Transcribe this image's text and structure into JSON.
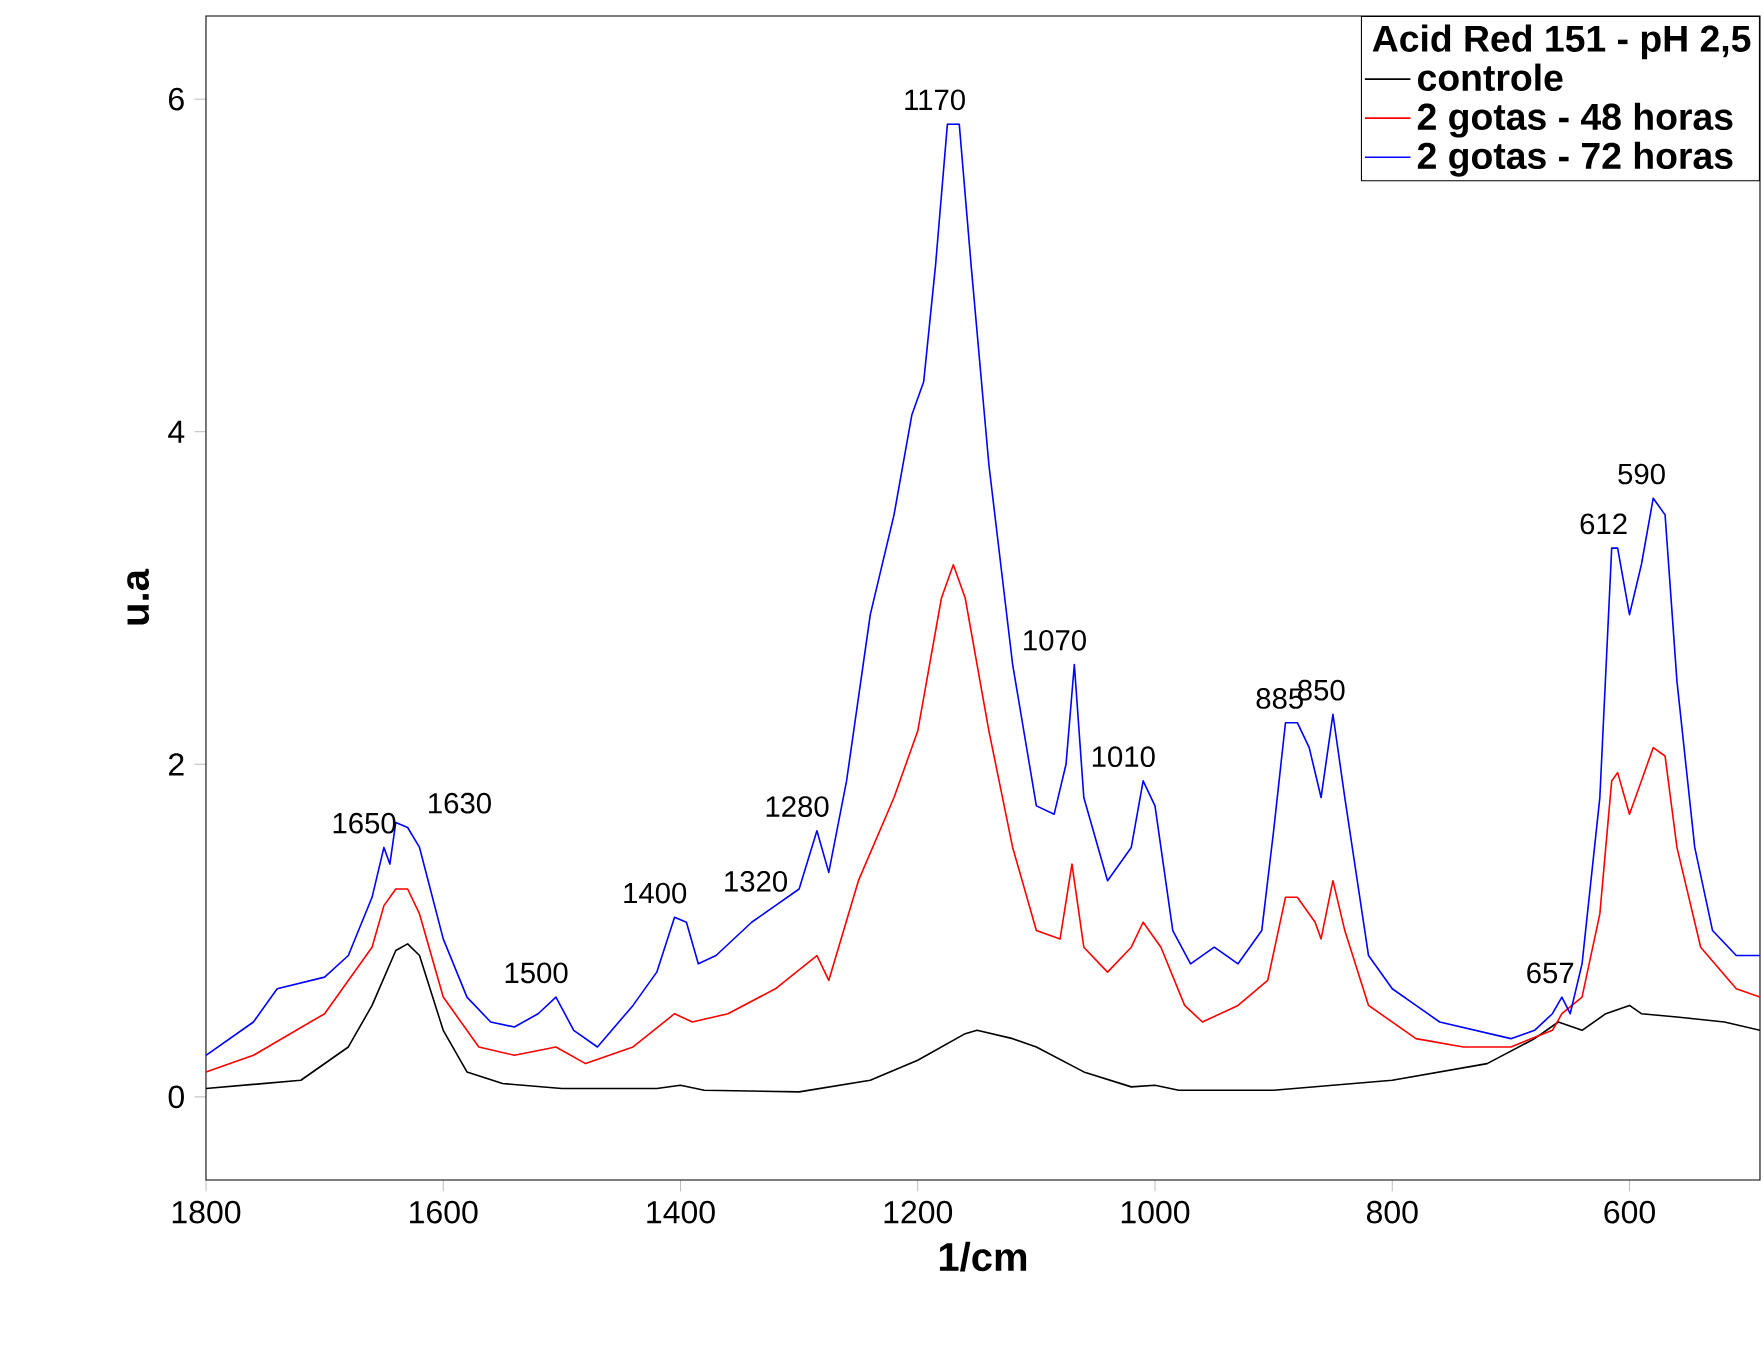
{
  "chart_data": {
    "type": "line",
    "xlabel": "1/cm",
    "ylabel": "u.a",
    "legend_title": "Acid Red 151 - pH 2,5",
    "legend": "top right",
    "grid": false,
    "marker": "none",
    "line_style": "solid",
    "xlim": [
      1800,
      490
    ],
    "xticks": [
      1800,
      1600,
      1400,
      1200,
      1000,
      800,
      600
    ],
    "ylim": [
      -0.5,
      6.5
    ],
    "yticks": [
      0,
      2,
      4,
      6
    ],
    "series": [
      {
        "name": "controle",
        "color": "#000000",
        "x": [
          1800,
          1720,
          1680,
          1660,
          1640,
          1630,
          1620,
          1600,
          1580,
          1550,
          1500,
          1420,
          1400,
          1380,
          1300,
          1240,
          1200,
          1160,
          1150,
          1120,
          1100,
          1060,
          1020,
          1000,
          980,
          900,
          800,
          720,
          680,
          660,
          640,
          620,
          600,
          590,
          560,
          520,
          490
        ],
        "values": [
          0.05,
          0.1,
          0.3,
          0.55,
          0.88,
          0.92,
          0.85,
          0.4,
          0.15,
          0.08,
          0.05,
          0.05,
          0.07,
          0.04,
          0.03,
          0.1,
          0.22,
          0.38,
          0.4,
          0.35,
          0.3,
          0.15,
          0.06,
          0.07,
          0.04,
          0.04,
          0.1,
          0.2,
          0.35,
          0.45,
          0.4,
          0.5,
          0.55,
          0.5,
          0.48,
          0.45,
          0.4
        ]
      },
      {
        "name": "2 gotas - 48 horas",
        "color": "#ff0000",
        "x": [
          1800,
          1760,
          1700,
          1660,
          1650,
          1640,
          1630,
          1620,
          1600,
          1570,
          1540,
          1505,
          1480,
          1440,
          1405,
          1390,
          1360,
          1320,
          1285,
          1275,
          1250,
          1220,
          1200,
          1180,
          1170,
          1160,
          1140,
          1120,
          1100,
          1080,
          1070,
          1060,
          1040,
          1020,
          1010,
          995,
          975,
          960,
          930,
          905,
          890,
          880,
          865,
          860,
          850,
          840,
          820,
          780,
          740,
          700,
          665,
          657,
          640,
          625,
          615,
          610,
          600,
          590,
          580,
          570,
          560,
          540,
          510,
          490
        ],
        "values": [
          0.15,
          0.25,
          0.5,
          0.9,
          1.15,
          1.25,
          1.25,
          1.1,
          0.6,
          0.3,
          0.25,
          0.3,
          0.2,
          0.3,
          0.5,
          0.45,
          0.5,
          0.65,
          0.85,
          0.7,
          1.3,
          1.8,
          2.2,
          3.0,
          3.2,
          3.0,
          2.2,
          1.5,
          1.0,
          0.95,
          1.4,
          0.9,
          0.75,
          0.9,
          1.05,
          0.9,
          0.55,
          0.45,
          0.55,
          0.7,
          1.2,
          1.2,
          1.05,
          0.95,
          1.3,
          1.0,
          0.55,
          0.35,
          0.3,
          0.3,
          0.4,
          0.5,
          0.6,
          1.1,
          1.9,
          1.95,
          1.7,
          1.9,
          2.1,
          2.05,
          1.5,
          0.9,
          0.65,
          0.6
        ]
      },
      {
        "name": "2 gotas - 72 horas",
        "color": "#0000ff",
        "x": [
          1800,
          1760,
          1740,
          1700,
          1680,
          1660,
          1650,
          1645,
          1640,
          1630,
          1620,
          1600,
          1580,
          1560,
          1540,
          1520,
          1505,
          1490,
          1470,
          1440,
          1420,
          1405,
          1395,
          1385,
          1370,
          1340,
          1320,
          1300,
          1285,
          1275,
          1260,
          1240,
          1220,
          1205,
          1195,
          1185,
          1175,
          1165,
          1155,
          1140,
          1120,
          1100,
          1085,
          1075,
          1068,
          1060,
          1040,
          1020,
          1010,
          1000,
          985,
          970,
          950,
          930,
          910,
          900,
          890,
          880,
          870,
          860,
          850,
          840,
          820,
          800,
          780,
          760,
          730,
          700,
          680,
          665,
          657,
          650,
          640,
          625,
          615,
          610,
          600,
          590,
          580,
          570,
          560,
          545,
          530,
          510,
          490
        ],
        "values": [
          0.25,
          0.45,
          0.65,
          0.72,
          0.85,
          1.2,
          1.5,
          1.4,
          1.65,
          1.62,
          1.5,
          0.95,
          0.6,
          0.45,
          0.42,
          0.5,
          0.6,
          0.4,
          0.3,
          0.55,
          0.75,
          1.08,
          1.05,
          0.8,
          0.85,
          1.05,
          1.15,
          1.25,
          1.6,
          1.35,
          1.9,
          2.9,
          3.5,
          4.1,
          4.3,
          5.0,
          5.85,
          5.85,
          5.0,
          3.8,
          2.6,
          1.75,
          1.7,
          2.0,
          2.6,
          1.8,
          1.3,
          1.5,
          1.9,
          1.75,
          1.0,
          0.8,
          0.9,
          0.8,
          1.0,
          1.6,
          2.25,
          2.25,
          2.1,
          1.8,
          2.3,
          1.8,
          0.85,
          0.65,
          0.55,
          0.45,
          0.4,
          0.35,
          0.4,
          0.5,
          0.6,
          0.5,
          0.8,
          1.8,
          3.3,
          3.3,
          2.9,
          3.2,
          3.6,
          3.5,
          2.5,
          1.5,
          1.0,
          0.85,
          0.85
        ]
      }
    ],
    "annotations": [
      {
        "text": "1650",
        "x": 1650,
        "y": 1.5
      },
      {
        "text": "1630",
        "x": 1630,
        "y": 1.62
      },
      {
        "text": "1500",
        "x": 1505,
        "y": 0.6
      },
      {
        "text": "1400",
        "x": 1405,
        "y": 1.08
      },
      {
        "text": "1320",
        "x": 1320,
        "y": 1.15
      },
      {
        "text": "1280",
        "x": 1285,
        "y": 1.6
      },
      {
        "text": "1170",
        "x": 1170,
        "y": 5.85
      },
      {
        "text": "1070",
        "x": 1068,
        "y": 2.6
      },
      {
        "text": "1010",
        "x": 1010,
        "y": 1.9
      },
      {
        "text": "885",
        "x": 885,
        "y": 2.25
      },
      {
        "text": "850",
        "x": 850,
        "y": 2.3
      },
      {
        "text": "657",
        "x": 657,
        "y": 0.6
      },
      {
        "text": "612",
        "x": 612,
        "y": 3.3
      },
      {
        "text": "590",
        "x": 580,
        "y": 3.6
      }
    ]
  }
}
